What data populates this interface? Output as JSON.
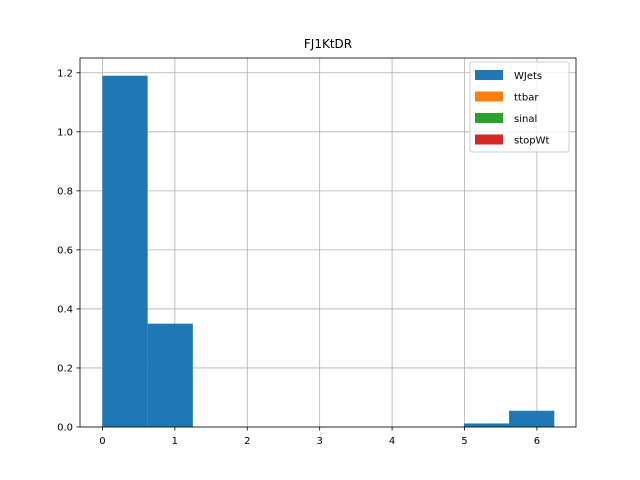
{
  "chart_data": {
    "type": "bar",
    "title": "FJ1KtDR",
    "xlabel": "",
    "ylabel": "",
    "xlim": [
      -0.31,
      6.54
    ],
    "ylim": [
      0,
      1.25
    ],
    "xticks": [
      0,
      1,
      2,
      3,
      4,
      5,
      6
    ],
    "yticks": [
      0.0,
      0.2,
      0.4,
      0.6,
      0.8,
      1.0,
      1.2
    ],
    "grid": true,
    "legend_position": "top-right",
    "bin_edges": [
      0,
      0.624,
      1.248,
      1.872,
      2.496,
      3.12,
      3.744,
      4.368,
      4.992,
      5.616,
      6.24
    ],
    "series": [
      {
        "name": "WJets",
        "color": "#1f77b4",
        "values": [
          1.19,
          0.35,
          0,
          0,
          0,
          0,
          0,
          0,
          0.012,
          0.055
        ]
      },
      {
        "name": "ttbar",
        "color": "#ff7f0e",
        "values": [
          0,
          0,
          0,
          0,
          0,
          0,
          0,
          0,
          0,
          0
        ]
      },
      {
        "name": "sinal",
        "color": "#2ca02c",
        "values": [
          0,
          0,
          0,
          0,
          0,
          0,
          0,
          0,
          0,
          0
        ]
      },
      {
        "name": "stopWt",
        "color": "#d62728",
        "values": [
          0,
          0,
          0,
          0,
          0,
          0,
          0,
          0,
          0,
          0
        ]
      }
    ]
  }
}
